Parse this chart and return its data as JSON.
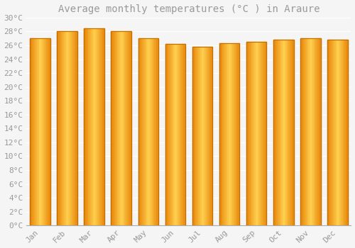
{
  "title": "Average monthly temperatures (°C ) in Araure",
  "months": [
    "Jan",
    "Feb",
    "Mar",
    "Apr",
    "May",
    "Jun",
    "Jul",
    "Aug",
    "Sep",
    "Oct",
    "Nov",
    "Dec"
  ],
  "values": [
    27.0,
    28.0,
    28.5,
    28.0,
    27.0,
    26.2,
    25.8,
    26.3,
    26.5,
    26.8,
    27.0,
    26.8
  ],
  "bar_color_left": "#E8850A",
  "bar_color_center": "#FFD050",
  "bar_color_right": "#E8850A",
  "bar_edge_color": "#C07000",
  "background_color": "#F5F5F5",
  "grid_color": "#FFFFFF",
  "ylim": [
    0,
    30
  ],
  "ytick_step": 2,
  "title_fontsize": 10,
  "tick_fontsize": 8,
  "font_color": "#999999"
}
